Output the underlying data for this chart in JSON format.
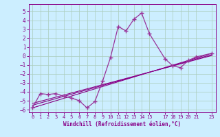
{
  "xlabel": "Windchill (Refroidissement éolien,°C)",
  "bg_color": "#cceeff",
  "grid_color": "#aaccbb",
  "line_color": "#880088",
  "line_color2": "#993399",
  "xlim": [
    -0.5,
    23.5
  ],
  "ylim": [
    -6.3,
    5.8
  ],
  "yticks": [
    -6,
    -5,
    -4,
    -3,
    -2,
    -1,
    0,
    1,
    2,
    3,
    4,
    5
  ],
  "xticks": [
    0,
    1,
    2,
    3,
    4,
    5,
    6,
    7,
    8,
    9,
    10,
    11,
    12,
    13,
    14,
    15,
    17,
    18,
    19,
    20,
    21,
    23
  ],
  "curve1_x": [
    0,
    1,
    2,
    3,
    4,
    5,
    6,
    7,
    8,
    9,
    10,
    11,
    12,
    13,
    14,
    15,
    17,
    18,
    19,
    20,
    21,
    23
  ],
  "curve1_y": [
    -5.8,
    -4.2,
    -4.3,
    -4.2,
    -4.5,
    -4.7,
    -5.0,
    -5.8,
    -5.1,
    -2.8,
    -0.2,
    3.3,
    2.8,
    4.1,
    4.8,
    2.5,
    -0.3,
    -1.1,
    -1.3,
    -0.5,
    -0.1,
    0.3
  ],
  "line_x": [
    0,
    23
  ],
  "line_y": [
    -5.8,
    0.3
  ],
  "line2_x": [
    0,
    23
  ],
  "line2_y": [
    -5.5,
    0.15
  ],
  "line3_x": [
    0,
    23
  ],
  "line3_y": [
    -5.3,
    0.05
  ]
}
